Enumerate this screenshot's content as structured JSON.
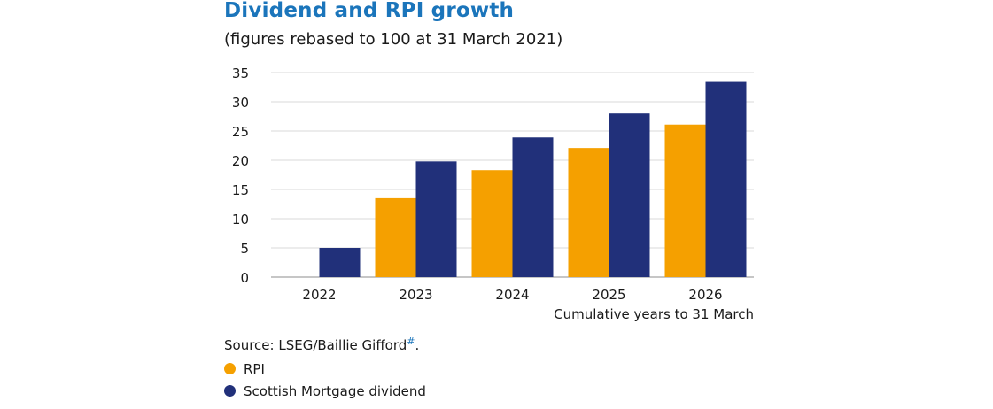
{
  "chart_data": {
    "type": "bar",
    "title": "Dividend and RPI growth",
    "subtitle": "(figures rebased to 100 at 31 March 2021)",
    "xlabel": "Cumulative years to 31 March",
    "ylabel": "",
    "categories": [
      "2022",
      "2023",
      "2024",
      "2025",
      "2026"
    ],
    "ylim": [
      0,
      35
    ],
    "yticks": [
      0,
      5,
      10,
      15,
      20,
      25,
      30,
      35
    ],
    "grid": true,
    "legend_placement": "bottom-left",
    "series": [
      {
        "name": "RPI",
        "color": "#f5a000",
        "values": [
          0,
          13.5,
          18.3,
          22.1,
          26.1
        ]
      },
      {
        "name": "Scottish Mortgage dividend",
        "color": "#21307a",
        "values": [
          5.0,
          19.8,
          23.9,
          28.0,
          33.4
        ]
      }
    ]
  },
  "source": {
    "text": "Source: LSEG/Baillie Gifford",
    "mark": "#",
    "end": "."
  }
}
